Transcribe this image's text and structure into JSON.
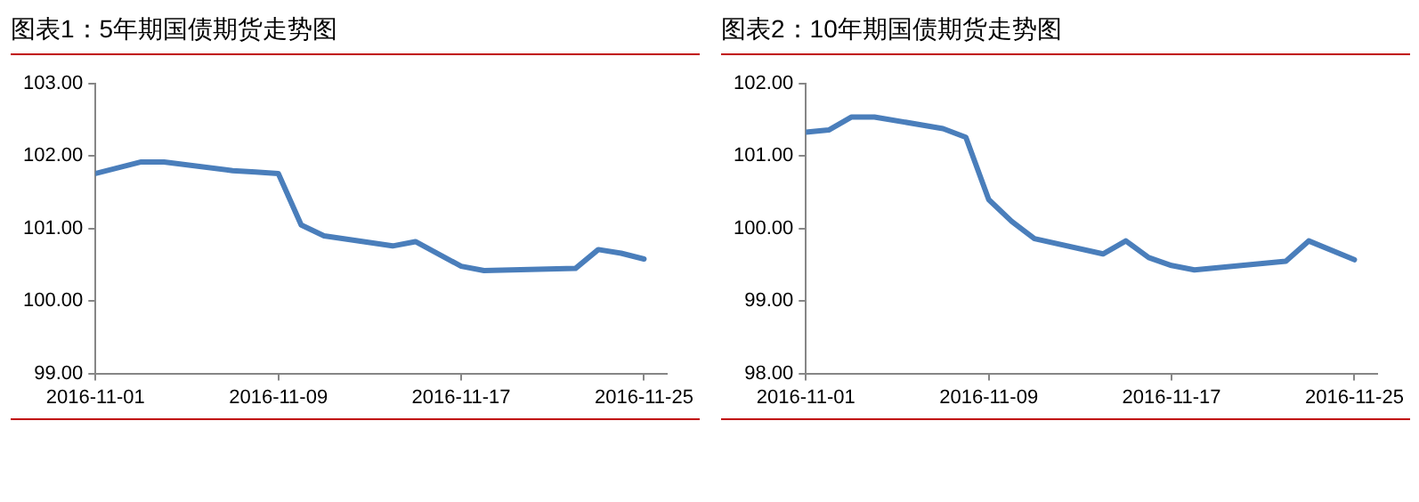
{
  "chart_data": [
    {
      "type": "line",
      "title": "图表1：5年期国债期货走势图",
      "xlim": [
        "2016-11-01",
        "2016-11-26"
      ],
      "xticks": [
        "2016-11-01",
        "2016-11-09",
        "2016-11-17",
        "2016-11-25"
      ],
      "ylim": [
        99,
        103
      ],
      "yticks": [
        {
          "value": 99,
          "label": "99.00"
        },
        {
          "value": 100,
          "label": "100.00"
        },
        {
          "value": 101,
          "label": "101.00"
        },
        {
          "value": 102,
          "label": "102.00"
        },
        {
          "value": 103,
          "label": "103.00"
        }
      ],
      "grid": false,
      "legend": false,
      "marker": "none",
      "series": [
        {
          "color": "#4a7ebb",
          "x": [
            "2016-11-01",
            "2016-11-03",
            "2016-11-04",
            "2016-11-07",
            "2016-11-08",
            "2016-11-09",
            "2016-11-10",
            "2016-11-11",
            "2016-11-14",
            "2016-11-15",
            "2016-11-17",
            "2016-11-18",
            "2016-11-22",
            "2016-11-23",
            "2016-11-24",
            "2016-11-25"
          ],
          "values": [
            101.76,
            101.92,
            101.92,
            101.8,
            101.78,
            101.76,
            101.05,
            100.9,
            100.76,
            100.82,
            100.48,
            100.42,
            100.45,
            100.71,
            100.66,
            100.58
          ]
        }
      ]
    },
    {
      "type": "line",
      "title": "图表2：10年期国债期货走势图",
      "xlim": [
        "2016-11-01",
        "2016-11-26"
      ],
      "xticks": [
        "2016-11-01",
        "2016-11-09",
        "2016-11-17",
        "2016-11-25"
      ],
      "ylim": [
        98,
        102
      ],
      "yticks": [
        {
          "value": 98,
          "label": "98.00"
        },
        {
          "value": 99,
          "label": "99.00"
        },
        {
          "value": 100,
          "label": "100.00"
        },
        {
          "value": 101,
          "label": "101.00"
        },
        {
          "value": 102,
          "label": "102.00"
        }
      ],
      "grid": false,
      "legend": false,
      "marker": "none",
      "series": [
        {
          "color": "#4a7ebb",
          "x": [
            "2016-11-01",
            "2016-11-02",
            "2016-11-03",
            "2016-11-04",
            "2016-11-07",
            "2016-11-08",
            "2016-11-09",
            "2016-11-10",
            "2016-11-11",
            "2016-11-14",
            "2016-11-15",
            "2016-11-16",
            "2016-11-17",
            "2016-11-18",
            "2016-11-22",
            "2016-11-23",
            "2016-11-25"
          ],
          "values": [
            101.33,
            101.36,
            101.54,
            101.54,
            101.38,
            101.26,
            100.4,
            100.1,
            99.86,
            99.65,
            99.83,
            99.6,
            99.49,
            99.43,
            99.55,
            99.83,
            99.57
          ]
        }
      ]
    }
  ]
}
